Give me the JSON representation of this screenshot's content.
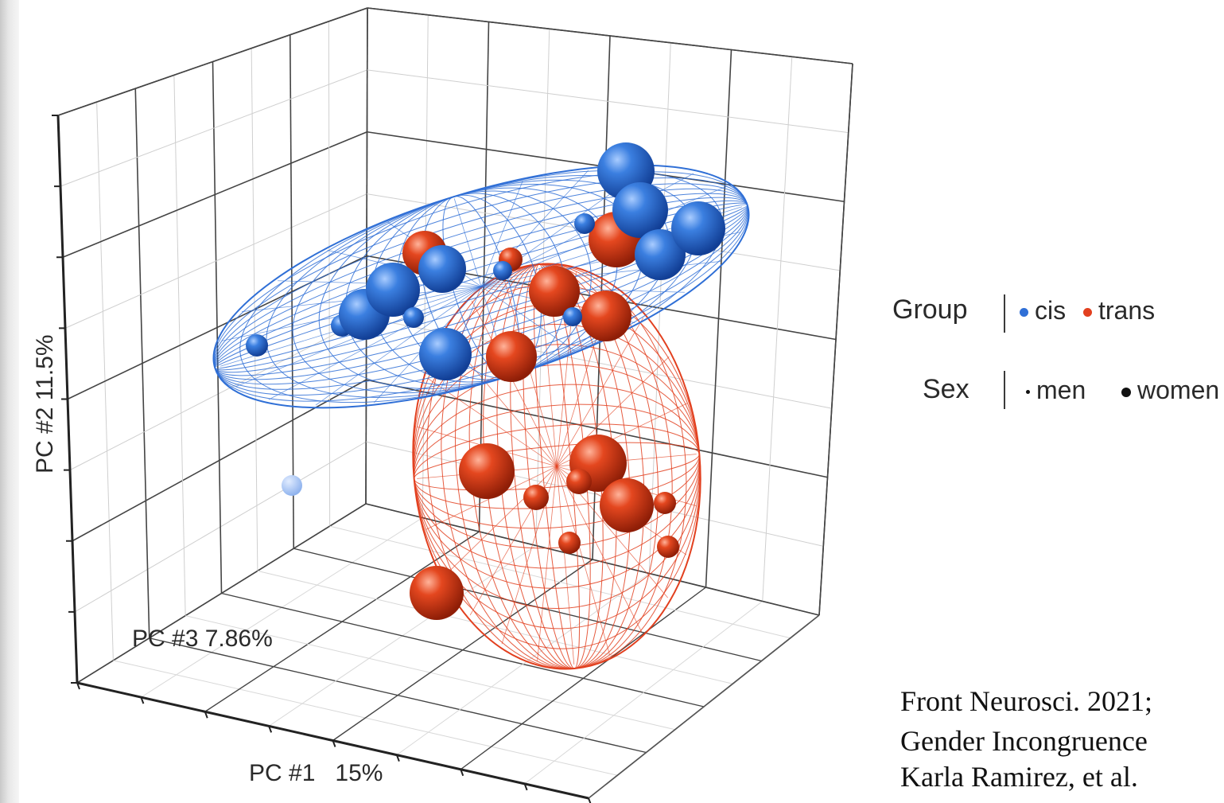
{
  "chart_data": {
    "type": "scatter",
    "axes": {
      "x": "PC #1   15%",
      "y": "PC #2 11.5%",
      "z": "PC #3 7.86%"
    },
    "grid": true,
    "legend_placement": "right",
    "legend": {
      "group": {
        "title": "Group",
        "items": [
          "cis",
          "trans"
        ]
      },
      "sex": {
        "title": "Sex",
        "items": [
          "men",
          "women"
        ]
      }
    },
    "colors": {
      "cis": "#2f6fd6",
      "trans": "#e2401f"
    },
    "series": [
      {
        "name": "cis",
        "ellipsoid": true
      },
      {
        "name": "trans",
        "ellipsoid": true
      }
    ]
  },
  "citation": {
    "line1": "Front Neurosci. 2021;",
    "line2": "Gender Incongruence",
    "line3": "Karla Ramirez, et al."
  }
}
